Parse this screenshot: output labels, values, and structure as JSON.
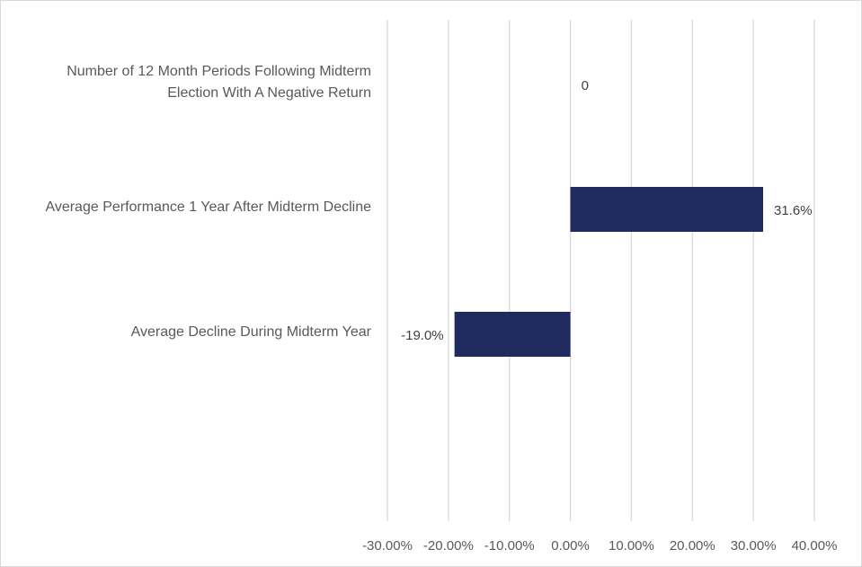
{
  "chart_data": {
    "type": "bar",
    "orientation": "horizontal",
    "title": "",
    "xlabel": "",
    "ylabel": "",
    "categories": [
      "Number of 12 Month Periods Following Midterm Election With A Negative Return",
      "Average Performance 1 Year After Midterm Decline",
      "Average Decline During Midterm Year"
    ],
    "category_lines": [
      [
        "Number of 12 Month Periods Following Midterm",
        "Election With A Negative Return"
      ],
      [
        "Average Performance 1 Year After Midterm Decline"
      ],
      [
        "Average Decline During Midterm Year"
      ]
    ],
    "values": [
      0,
      31.6,
      -19.0
    ],
    "data_labels": [
      "0",
      "31.6%",
      "-19.0%"
    ],
    "xlim": [
      -30,
      40
    ],
    "x_ticks": [
      -30,
      -20,
      -10,
      0,
      10,
      20,
      30,
      40
    ],
    "x_tick_labels": [
      "-30.00%",
      "-20.00%",
      "-10.00%",
      "0.00%",
      "10.00%",
      "20.00%",
      "30.00%",
      "40.00%"
    ],
    "grid": "vertical",
    "legend": "none",
    "colors": {
      "bar": "#1f2a5e",
      "gridline": "#d9d9d9",
      "text": "#595959",
      "data_label": "#404040"
    }
  }
}
